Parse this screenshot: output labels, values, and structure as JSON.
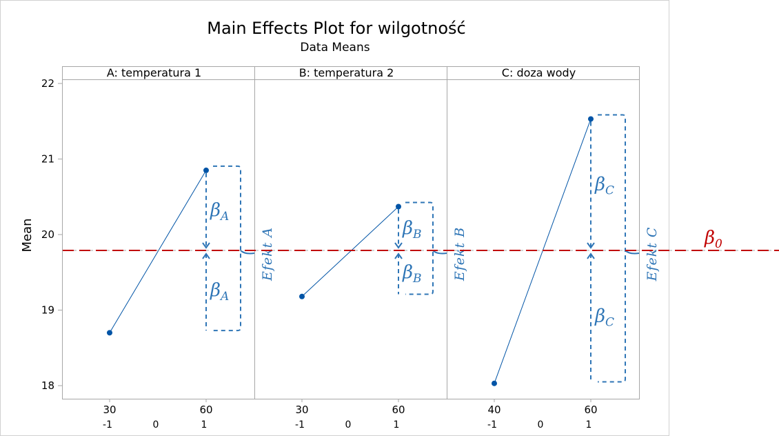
{
  "chart_data": {
    "type": "line",
    "title": "Main Effects Plot for wilgotność",
    "subtitle": "Data Means",
    "ylabel": "Mean",
    "ylim": [
      17.85,
      22.05
    ],
    "yticks": [
      18,
      19,
      20,
      21,
      22
    ],
    "grid": false,
    "reference_line": {
      "value": 19.79,
      "label": "β",
      "label_sub": "0",
      "color": "#c00000"
    },
    "series_color": "#0054a6",
    "annotation_color": "#2e75b6",
    "panels": [
      {
        "title": "A: temperatura 1",
        "x_ticks": [
          "30",
          "60"
        ],
        "coded_ticks": [
          "-1",
          "0",
          "1"
        ],
        "points": [
          {
            "x": "30",
            "coded": -1,
            "y": 18.7
          },
          {
            "x": "60",
            "coded": 1,
            "y": 20.85
          }
        ],
        "beta_label": "β",
        "beta_sub": "A",
        "effect_label": "Efekt A"
      },
      {
        "title": "B: temperatura 2",
        "x_ticks": [
          "30",
          "60"
        ],
        "coded_ticks": [
          "-1",
          "0",
          "1"
        ],
        "points": [
          {
            "x": "30",
            "coded": -1,
            "y": 19.18
          },
          {
            "x": "60",
            "coded": 1,
            "y": 20.37
          }
        ],
        "beta_label": "β",
        "beta_sub": "B",
        "effect_label": "Efekt B"
      },
      {
        "title": "C: doza wody",
        "x_ticks": [
          "40",
          "60"
        ],
        "coded_ticks": [
          "-1",
          "0",
          "1"
        ],
        "points": [
          {
            "x": "40",
            "coded": -1,
            "y": 18.03
          },
          {
            "x": "60",
            "coded": 1,
            "y": 21.53
          }
        ],
        "beta_label": "β",
        "beta_sub": "C",
        "effect_label": "Efekt C"
      }
    ]
  }
}
